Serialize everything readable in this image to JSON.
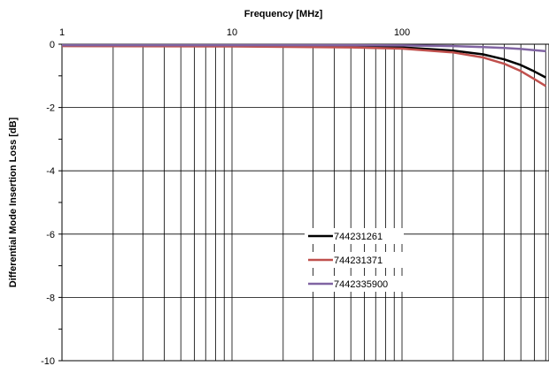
{
  "chart_data": {
    "type": "line",
    "xlabel": "Frequency [MHz]",
    "ylabel": "Differential Mode Insertion Loss [dB]",
    "x_scale": "log",
    "x_axis_position": "top",
    "xlim": [
      1,
      1000
    ],
    "ylim": [
      -10,
      0
    ],
    "x_tick_labels": [
      "1",
      "10",
      "100"
    ],
    "y_tick_labels": [
      "0",
      "-2",
      "-4",
      "-6",
      "-8",
      "-10"
    ],
    "grid": true,
    "legend_placement": "center",
    "series": [
      {
        "name": "744231261",
        "color": "#000000",
        "x": [
          1,
          10,
          50,
          100,
          200,
          300,
          400,
          500,
          600,
          700
        ],
        "y": [
          -0.05,
          -0.06,
          -0.08,
          -0.1,
          -0.2,
          -0.32,
          -0.48,
          -0.66,
          -0.86,
          -1.05
        ]
      },
      {
        "name": "744231371",
        "color": "#c0504d",
        "x": [
          1,
          10,
          50,
          100,
          200,
          300,
          400,
          500,
          600,
          700
        ],
        "y": [
          -0.06,
          -0.07,
          -0.1,
          -0.14,
          -0.26,
          -0.42,
          -0.62,
          -0.85,
          -1.1,
          -1.32
        ]
      },
      {
        "name": "7442335900",
        "color": "#8064a2",
        "x": [
          1,
          10,
          50,
          100,
          200,
          300,
          400,
          500,
          600,
          700
        ],
        "y": [
          -0.03,
          -0.03,
          -0.03,
          -0.04,
          -0.06,
          -0.09,
          -0.12,
          -0.15,
          -0.19,
          -0.22
        ]
      }
    ]
  }
}
